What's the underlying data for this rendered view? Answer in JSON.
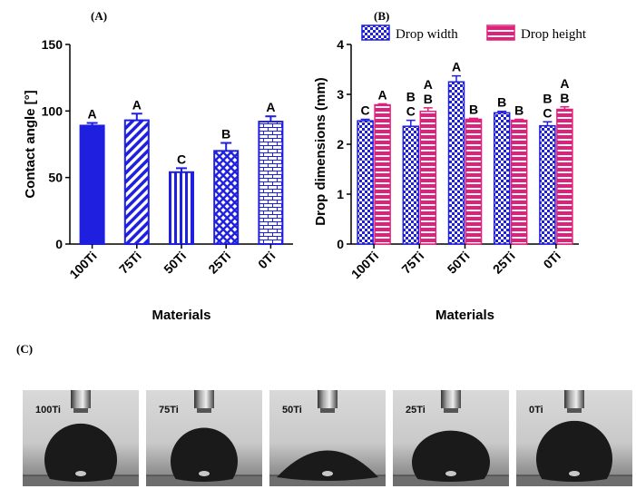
{
  "chart_data": [
    {
      "type": "bar",
      "panel_label": "(A)",
      "categories": [
        "100Ti",
        "75Ti",
        "50Ti",
        "25Ti",
        "0Ti"
      ],
      "values": [
        89,
        93,
        54,
        70,
        92
      ],
      "errors": [
        2,
        5,
        3,
        6,
        4
      ],
      "letters": [
        "A",
        "A",
        "C",
        "B",
        "A"
      ],
      "xlabel": "Materials",
      "ylabel": "Contact angle [°]",
      "ylim": [
        0,
        150
      ],
      "yticks": [
        0,
        50,
        100,
        150
      ],
      "color": "#1f1fe0"
    },
    {
      "type": "bar",
      "panel_label": "(B)",
      "categories": [
        "100Ti",
        "75Ti",
        "50Ti",
        "25Ti",
        "0Ti"
      ],
      "series": [
        {
          "name": "Drop width",
          "values": [
            2.47,
            2.36,
            3.25,
            2.63,
            2.37
          ],
          "errors": [
            0.03,
            0.12,
            0.12,
            0.03,
            0.08
          ],
          "letters": [
            "C",
            "B\nC",
            "A",
            "B",
            "B\nC"
          ],
          "color": "#1f1fe0"
        },
        {
          "name": "Drop height",
          "values": [
            2.79,
            2.66,
            2.5,
            2.48,
            2.7
          ],
          "errors": [
            0.02,
            0.07,
            0.02,
            0.02,
            0.05
          ],
          "letters": [
            "A",
            "A\nB",
            "B",
            "B",
            "A\nB"
          ],
          "color": "#e0207a"
        }
      ],
      "xlabel": "Materials",
      "ylabel": "Drop dimensions (mm)",
      "ylim": [
        0,
        4
      ],
      "yticks": [
        0,
        1,
        2,
        3,
        4
      ]
    }
  ],
  "photos": {
    "panel_label": "(C)",
    "labels": [
      "100Ti",
      "75Ti",
      "50Ti",
      "25Ti",
      "0Ti"
    ]
  }
}
